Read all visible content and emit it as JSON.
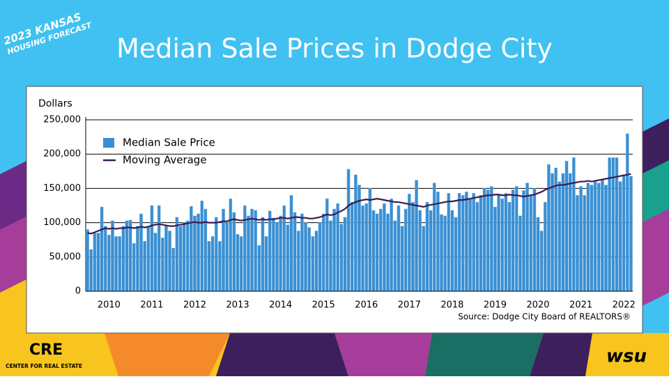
{
  "slide": {
    "logo_line1": "2023 KANSAS",
    "logo_line2": "HOUSING FORECAST",
    "cre": "CRE",
    "cre_sub": "CENTER FOR REAL ESTATE",
    "wsu": "wsu"
  },
  "chart_data": {
    "type": "bar",
    "title": "Median Sale Prices in Dodge City",
    "y_label": "Dollars",
    "source": "Source: Dodge City Board of REALTORS®",
    "categories": [
      null,
      null,
      null,
      null,
      null,
      null,
      "2010",
      null,
      null,
      null,
      null,
      null,
      null,
      null,
      null,
      null,
      null,
      null,
      "2011",
      null,
      null,
      null,
      null,
      null,
      null,
      null,
      null,
      null,
      null,
      null,
      "2012",
      null,
      null,
      null,
      null,
      null,
      null,
      null,
      null,
      null,
      null,
      null,
      "2013",
      null,
      null,
      null,
      null,
      null,
      null,
      null,
      null,
      null,
      null,
      null,
      "2014",
      null,
      null,
      null,
      null,
      null,
      null,
      null,
      null,
      null,
      null,
      null,
      "2015",
      null,
      null,
      null,
      null,
      null,
      null,
      null,
      null,
      null,
      null,
      null,
      "2016",
      null,
      null,
      null,
      null,
      null,
      null,
      null,
      null,
      null,
      null,
      null,
      "2017",
      null,
      null,
      null,
      null,
      null,
      null,
      null,
      null,
      null,
      null,
      null,
      "2018",
      null,
      null,
      null,
      null,
      null,
      null,
      null,
      null,
      null,
      null,
      null,
      "2019",
      null,
      null,
      null,
      null,
      null,
      null,
      null,
      null,
      null,
      null,
      null,
      "2020",
      null,
      null,
      null,
      null,
      null,
      null,
      null,
      null,
      null,
      null,
      null,
      "2021",
      null,
      null,
      null,
      null,
      null,
      null,
      null,
      null,
      null,
      null,
      null,
      "2022",
      null,
      null
    ],
    "series": [
      {
        "name": "Median Sale Price",
        "color": "#3b8fd2",
        "values": [
          90000,
          61000,
          85000,
          85000,
          123000,
          95000,
          82000,
          103000,
          80000,
          80000,
          95000,
          103000,
          104000,
          70000,
          95000,
          113000,
          73000,
          95000,
          125000,
          85000,
          125000,
          78000,
          95000,
          88000,
          63000,
          108000,
          95000,
          100000,
          103000,
          124000,
          110000,
          113000,
          132000,
          120000,
          73000,
          80000,
          108000,
          73000,
          120000,
          100000,
          135000,
          115000,
          83000,
          80000,
          125000,
          110000,
          120000,
          118000,
          67000,
          108000,
          80000,
          117000,
          107000,
          100000,
          110000,
          125000,
          97000,
          140000,
          115000,
          88000,
          113000,
          100000,
          93000,
          80000,
          88000,
          100000,
          113000,
          135000,
          103000,
          120000,
          128000,
          98000,
          108000,
          178000,
          130000,
          170000,
          155000,
          125000,
          128000,
          150000,
          118000,
          113000,
          120000,
          128000,
          113000,
          135000,
          103000,
          125000,
          95000,
          120000,
          142000,
          130000,
          162000,
          118000,
          95000,
          130000,
          118000,
          158000,
          145000,
          112000,
          110000,
          143000,
          118000,
          108000,
          143000,
          140000,
          145000,
          135000,
          143000,
          130000,
          140000,
          150000,
          148000,
          153000,
          123000,
          140000,
          135000,
          143000,
          130000,
          148000,
          153000,
          110000,
          147000,
          158000,
          140000,
          150000,
          108000,
          88000,
          130000,
          185000,
          172000,
          180000,
          160000,
          172000,
          190000,
          172000,
          195000,
          140000,
          153000,
          140000,
          158000,
          155000,
          160000,
          158000,
          162000,
          155000,
          195000,
          195000,
          195000,
          160000,
          170000,
          230000,
          168000
        ]
      },
      {
        "name": "Moving Average",
        "color": "#3d1a4e",
        "values": [
          85000,
          84000,
          86000,
          88000,
          90000,
          92000,
          91000,
          92000,
          91000,
          92000,
          92000,
          93000,
          93000,
          92000,
          93000,
          94000,
          93000,
          94000,
          96000,
          97000,
          98000,
          97000,
          96000,
          95000,
          95000,
          96000,
          97000,
          98000,
          99000,
          100000,
          101000,
          100000,
          100000,
          101000,
          100000,
          100000,
          100000,
          101000,
          102000,
          102000,
          104000,
          105000,
          104000,
          103000,
          104000,
          105000,
          106000,
          105000,
          104000,
          105000,
          104000,
          105000,
          105000,
          106000,
          107000,
          107000,
          106000,
          107000,
          108000,
          108000,
          107000,
          107000,
          106000,
          106000,
          107000,
          108000,
          110000,
          112000,
          111000,
          112000,
          115000,
          117000,
          120000,
          125000,
          128000,
          130000,
          132000,
          133000,
          134000,
          133000,
          134000,
          135000,
          134000,
          133000,
          132000,
          131000,
          130000,
          130000,
          129000,
          128000,
          127000,
          126000,
          125000,
          124000,
          123000,
          125000,
          126000,
          127000,
          128000,
          129000,
          130000,
          131000,
          131000,
          132000,
          133000,
          133000,
          134000,
          135000,
          136000,
          137000,
          138000,
          139000,
          140000,
          140000,
          141000,
          141000,
          140000,
          140000,
          141000,
          140000,
          140000,
          139000,
          138000,
          139000,
          140000,
          141000,
          143000,
          145000,
          148000,
          150000,
          152000,
          154000,
          155000,
          155000,
          156000,
          157000,
          158000,
          159000,
          160000,
          160000,
          161000,
          160000,
          161000,
          162000,
          163000,
          164000,
          165000,
          166000,
          167000,
          168000,
          169000,
          170000,
          171000
        ]
      }
    ],
    "ylim": [
      0,
      250000
    ],
    "yticks": [
      0,
      {
        "value": 50000,
        "label": "50,000"
      },
      {
        "value": 100000,
        "label": "100,000"
      },
      {
        "value": 150000,
        "label": "150,000"
      },
      {
        "value": 200000,
        "label": "200,000"
      },
      {
        "value": 250000,
        "label": "250,000"
      }
    ],
    "grid": true,
    "legend": "upper left"
  }
}
